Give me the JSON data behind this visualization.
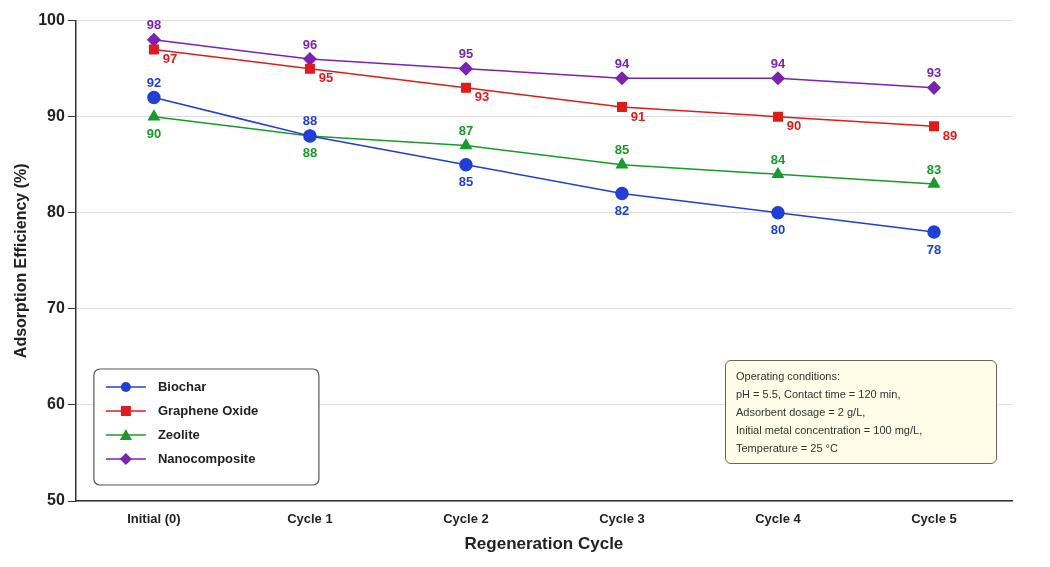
{
  "chart_data": {
    "type": "line",
    "xlabel": "Regeneration Cycle",
    "ylabel": "Adsorption Efficiency (%)",
    "categories": [
      "Initial (0)",
      "Cycle 1",
      "Cycle 2",
      "Cycle 3",
      "Cycle 4",
      "Cycle 5"
    ],
    "series": [
      {
        "name": "Biochar",
        "color": "#1f3fd6",
        "marker": "circle",
        "values": [
          92,
          88,
          85,
          82,
          80,
          78
        ],
        "value_labels": [
          "92",
          "88",
          "85",
          "82",
          "80",
          "78"
        ]
      },
      {
        "name": "Graphene Oxide",
        "color": "#e01b1b",
        "marker": "square",
        "values": [
          97,
          95,
          93,
          91,
          90,
          89
        ],
        "value_labels": [
          "97",
          "95",
          "93",
          "91",
          "90",
          "89"
        ]
      },
      {
        "name": "Zeolite",
        "color": "#1a9a2a",
        "marker": "triangle",
        "values": [
          90,
          88,
          87,
          85,
          84,
          83
        ],
        "value_labels": [
          "90",
          "88",
          "87",
          "85",
          "84",
          "83"
        ]
      },
      {
        "name": "Nanocomposite",
        "color": "#7b22b0",
        "marker": "diamond",
        "values": [
          98,
          96,
          95,
          94,
          94,
          93
        ],
        "value_labels": [
          "98",
          "96",
          "95",
          "94",
          "94",
          "93"
        ]
      }
    ],
    "ylim": [
      50,
      100
    ],
    "yticks": [
      50,
      60,
      70,
      80,
      90,
      100
    ],
    "grid": "y",
    "legend": "bottom left",
    "line_style": "solid",
    "annotations": [
      "Operating conditions:\npH = 5.5, Contact time = 120 min,\nAdsorbent dosage = 2 g/L,\nInitial metal concentration = 100 mg/L,\nTemperature = 25 °C"
    ]
  }
}
